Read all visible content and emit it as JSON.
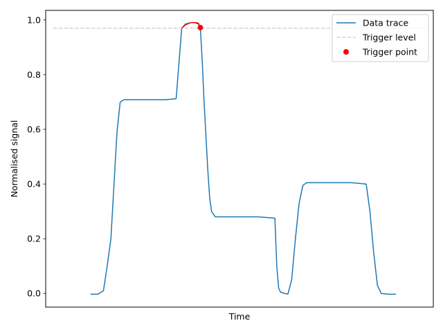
{
  "chart_data": {
    "type": "line",
    "xlabel": "Time",
    "ylabel": "Normalised signal",
    "ylim": [
      -0.05,
      1.035
    ],
    "xlim": [
      -0.2,
      10.2
    ],
    "x_ticks_shown": false,
    "yticks": [
      0.0,
      0.2,
      0.4,
      0.6,
      0.8,
      1.0
    ],
    "ytick_labels": [
      "0.0",
      "0.2",
      "0.4",
      "0.6",
      "0.8",
      "1.0"
    ],
    "grid": false,
    "legend_position": "top-right",
    "series": [
      {
        "name": "Data trace",
        "color": "#1f77b4",
        "style": "solid",
        "x": [
          1.0,
          1.2,
          1.35,
          1.45,
          1.55,
          1.7,
          1.72,
          1.8,
          1.9,
          2.0,
          2.5,
          3.0,
          3.3,
          3.38,
          3.45,
          3.55,
          3.7,
          3.8,
          3.9,
          3.95,
          4.0,
          4.05,
          4.15,
          4.2,
          4.25,
          4.35,
          4.45,
          4.6,
          5.0,
          5.5,
          5.95,
          6.0,
          6.05,
          6.1,
          6.2,
          6.3,
          6.4,
          6.5,
          6.6,
          6.7,
          6.8,
          6.9,
          7.0,
          7.5,
          8.0,
          8.4,
          8.5,
          8.6,
          8.7,
          8.8,
          9.0,
          9.2
        ],
        "y": [
          -0.003,
          -0.003,
          0.01,
          0.1,
          0.2,
          0.56,
          0.6,
          0.7,
          0.708,
          0.708,
          0.708,
          0.708,
          0.712,
          0.85,
          0.97,
          0.985,
          0.99,
          0.99,
          0.985,
          0.97,
          0.85,
          0.7,
          0.45,
          0.35,
          0.3,
          0.28,
          0.28,
          0.28,
          0.28,
          0.28,
          0.275,
          0.1,
          0.02,
          0.005,
          0.0,
          -0.002,
          0.05,
          0.2,
          0.33,
          0.395,
          0.405,
          0.405,
          0.405,
          0.405,
          0.405,
          0.4,
          0.3,
          0.15,
          0.03,
          0.0,
          -0.003,
          -0.003
        ]
      },
      {
        "name": "Trigger level",
        "color": "#d3d3d3",
        "style": "dashed",
        "x": [
          0.0,
          10.0
        ],
        "y": [
          0.97,
          0.97
        ]
      },
      {
        "name": "",
        "color": "#ff0000",
        "style": "solid",
        "x": [
          3.45,
          3.55,
          3.65,
          3.7,
          3.75,
          3.8,
          3.85,
          3.9,
          3.95
        ],
        "y": [
          0.97,
          0.982,
          0.988,
          0.99,
          0.99,
          0.99,
          0.99,
          0.988,
          0.972
        ]
      }
    ],
    "markers": [
      {
        "name": "Trigger point",
        "color": "#ff0000",
        "x": 3.95,
        "y": 0.972
      }
    ]
  },
  "legend": {
    "items": [
      {
        "label": "Data trace",
        "kind": "line",
        "color": "#1f77b4"
      },
      {
        "label": "Trigger level",
        "kind": "dashed",
        "color": "#d3d3d3"
      },
      {
        "label": "Trigger point",
        "kind": "marker",
        "color": "#ff0000"
      }
    ]
  }
}
